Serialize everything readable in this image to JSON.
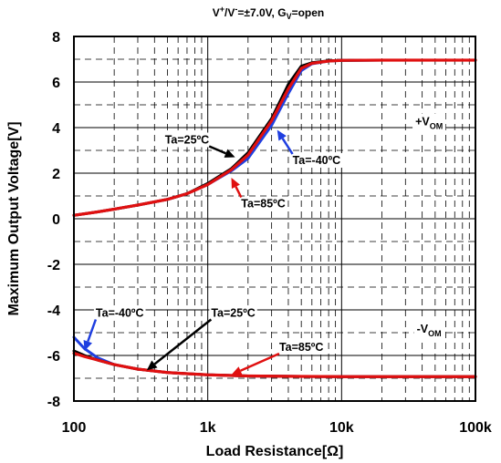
{
  "chart_data": {
    "type": "line",
    "subtitle_parts": {
      "v": "V",
      "plus": "+",
      "slash": "/V",
      "minus": "-",
      "mid": "=±7.0V, G",
      "sub": "V",
      "end": "=open"
    },
    "xlabel": "Load Resistance[Ω]",
    "ylabel": "Maximum Output Voltage[V]",
    "x_scale": "log",
    "xlim": [
      100,
      100000
    ],
    "ylim": [
      -8,
      8
    ],
    "x_ticks": [
      100,
      1000,
      10000,
      100000
    ],
    "x_tick_labels": [
      "100",
      "1k",
      "10k",
      "100k"
    ],
    "y_ticks": [
      -8,
      -6,
      -4,
      -2,
      0,
      2,
      4,
      6,
      8
    ],
    "y_tick_labels": [
      "-8",
      "-6",
      "-4",
      "-2",
      "0",
      "2",
      "4",
      "6",
      "8"
    ],
    "grid": true,
    "series": [
      {
        "name": "Ta=-40ºC",
        "color": "#1f3fe0",
        "x": [
          100,
          150,
          200,
          300,
          500,
          700,
          1000,
          1500,
          2000,
          3000,
          4000,
          5000,
          6000,
          8000,
          10000,
          20000,
          50000,
          100000
        ],
        "y": [
          0.15,
          0.3,
          0.42,
          0.6,
          0.85,
          1.1,
          1.5,
          2.1,
          2.65,
          4.1,
          5.5,
          6.5,
          6.8,
          6.92,
          6.95,
          6.96,
          6.96,
          6.96
        ]
      },
      {
        "name": "Ta=25ºC",
        "color": "#000000",
        "x": [
          100,
          150,
          200,
          300,
          500,
          700,
          1000,
          1500,
          2000,
          3000,
          4000,
          5000,
          6000,
          8000,
          10000,
          20000,
          50000,
          100000
        ],
        "y": [
          0.15,
          0.3,
          0.42,
          0.6,
          0.85,
          1.1,
          1.55,
          2.2,
          2.9,
          4.4,
          5.9,
          6.7,
          6.85,
          6.93,
          6.95,
          6.96,
          6.96,
          6.96
        ]
      },
      {
        "name": "Ta=85ºC",
        "color": "#e01010",
        "x": [
          100,
          150,
          200,
          300,
          500,
          700,
          1000,
          1500,
          2000,
          3000,
          4000,
          5000,
          6000,
          8000,
          10000,
          20000,
          50000,
          100000
        ],
        "y": [
          0.15,
          0.3,
          0.42,
          0.6,
          0.85,
          1.1,
          1.5,
          2.15,
          2.8,
          4.3,
          5.7,
          6.6,
          6.82,
          6.92,
          6.95,
          6.96,
          6.96,
          6.96
        ]
      },
      {
        "name": "Ta=-40ºC",
        "color": "#1f3fe0",
        "x": [
          100,
          120,
          150,
          200,
          300,
          500,
          700,
          1000,
          2000,
          5000,
          10000,
          20000,
          50000,
          100000
        ],
        "y": [
          -5.2,
          -5.7,
          -6.1,
          -6.4,
          -6.6,
          -6.75,
          -6.8,
          -6.85,
          -6.9,
          -6.92,
          -6.93,
          -6.93,
          -6.93,
          -6.93
        ]
      },
      {
        "name": "Ta=25ºC",
        "color": "#000000",
        "x": [
          100,
          120,
          150,
          200,
          300,
          500,
          700,
          1000,
          2000,
          5000,
          10000,
          20000,
          50000,
          100000
        ],
        "y": [
          -5.8,
          -6.0,
          -6.2,
          -6.4,
          -6.6,
          -6.75,
          -6.8,
          -6.85,
          -6.9,
          -6.92,
          -6.93,
          -6.93,
          -6.93,
          -6.93
        ]
      },
      {
        "name": "Ta=85ºC",
        "color": "#e01010",
        "x": [
          100,
          120,
          150,
          200,
          300,
          500,
          700,
          1000,
          2000,
          5000,
          10000,
          20000,
          50000,
          100000
        ],
        "y": [
          -5.9,
          -6.05,
          -6.2,
          -6.4,
          -6.6,
          -6.75,
          -6.8,
          -6.85,
          -6.9,
          -6.92,
          -6.93,
          -6.93,
          -6.93,
          -6.93
        ]
      }
    ],
    "annotations": [
      {
        "text": "Ta=25ºC",
        "color": "#000000",
        "x": 700,
        "y": 3.5,
        "arrow_to": [
          1600,
          2.7
        ]
      },
      {
        "text": "Ta=-40ºC",
        "color": "#1f3fe0",
        "x": 6500,
        "y": 2.6,
        "arrow_to": [
          3300,
          3.9
        ]
      },
      {
        "text": "Ta=85ºC",
        "color": "#e01010",
        "x": 2600,
        "y": 0.7,
        "arrow_to": [
          1500,
          1.8
        ]
      },
      {
        "text": "Ta=-40ºC",
        "color": "#1f3fe0",
        "x": 220,
        "y": -4.1,
        "arrow_to": [
          120,
          -5.8
        ]
      },
      {
        "text": "Ta=25ºC",
        "color": "#000000",
        "x": 1550,
        "y": -4.1,
        "arrow_to": [
          350,
          -6.65
        ]
      },
      {
        "text": "Ta=85ºC",
        "color": "#e01010",
        "x": 5000,
        "y": -5.6,
        "arrow_to": [
          1500,
          -6.85
        ]
      }
    ],
    "side_labels": [
      {
        "main": "+V",
        "sub": "OM",
        "x": 45000,
        "y": 4.3
      },
      {
        "main": "-V",
        "sub": "OM",
        "x": 45000,
        "y": -4.8
      }
    ]
  }
}
